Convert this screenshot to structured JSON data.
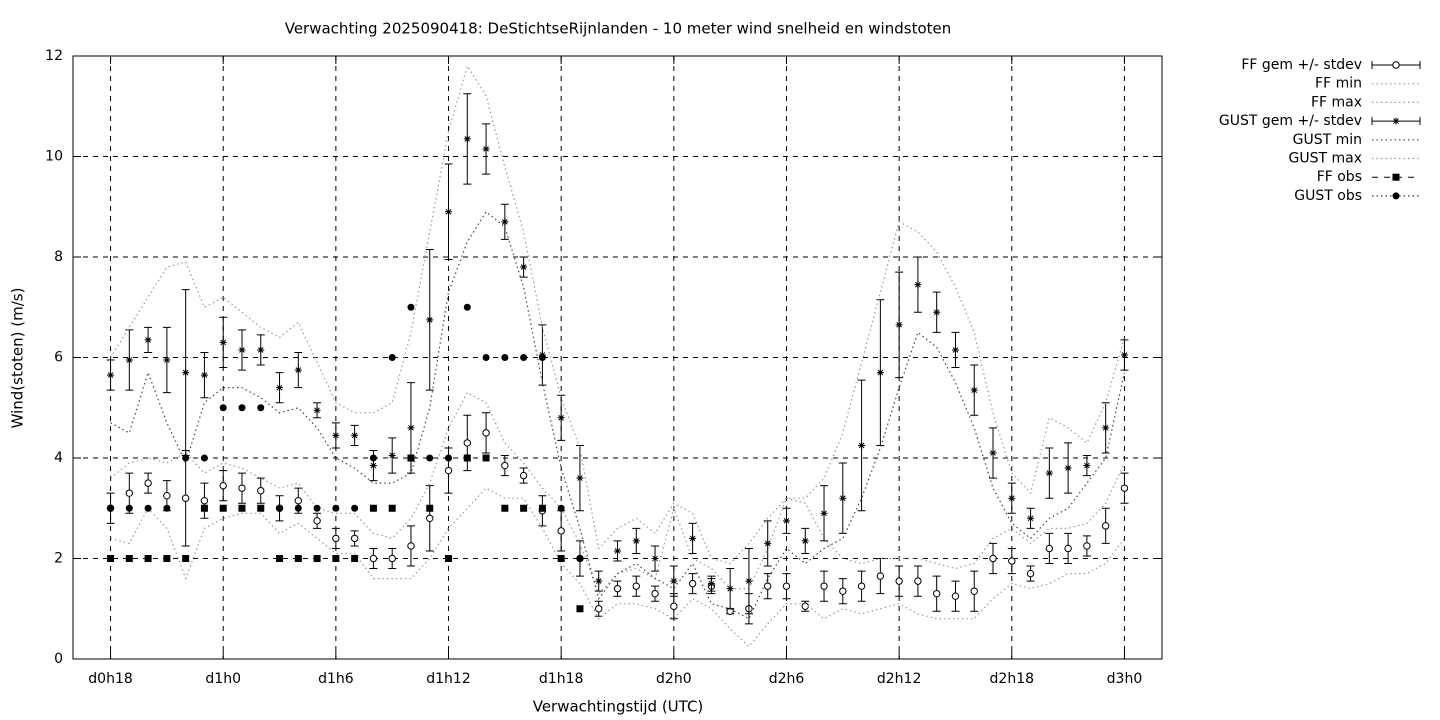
{
  "chart_data": {
    "type": "errorbar",
    "title": "Verwachting 2025090418: DeStichtseRijnlanden - 10 meter wind snelheid en windstoten",
    "xlabel": "Verwachtingstijd (UTC)",
    "ylabel": "Wind(stoten) (m/s)",
    "x": [
      18,
      19,
      20,
      21,
      22,
      23,
      24,
      25,
      26,
      27,
      28,
      29,
      30,
      31,
      32,
      33,
      34,
      35,
      36,
      37,
      38,
      39,
      40,
      41,
      42,
      43,
      44,
      45,
      46,
      47,
      48,
      49,
      50,
      51,
      52,
      53,
      54,
      55,
      56,
      57,
      58,
      59,
      60,
      61,
      62,
      63,
      64,
      65,
      66,
      67,
      68,
      69,
      70,
      71,
      72
    ],
    "xlim": [
      16,
      74
    ],
    "xticks": [
      {
        "value": 18,
        "label": "d0h18"
      },
      {
        "value": 24,
        "label": "d1h0"
      },
      {
        "value": 30,
        "label": "d1h6"
      },
      {
        "value": 36,
        "label": "d1h12"
      },
      {
        "value": 42,
        "label": "d1h18"
      },
      {
        "value": 48,
        "label": "d2h0"
      },
      {
        "value": 54,
        "label": "d2h6"
      },
      {
        "value": 60,
        "label": "d2h12"
      },
      {
        "value": 66,
        "label": "d2h18"
      },
      {
        "value": 72,
        "label": "d3h0"
      }
    ],
    "ylim": [
      0,
      12
    ],
    "yticks": [
      0,
      2,
      4,
      6,
      8,
      10,
      12
    ],
    "grid": true,
    "legend": "outside-right",
    "series": [
      {
        "name": "FF gem +/- stdev",
        "color": "#000000",
        "marker": "circle",
        "values": [
          3.0,
          3.3,
          3.5,
          3.25,
          3.2,
          3.15,
          3.45,
          3.4,
          3.35,
          3.0,
          3.15,
          2.75,
          2.4,
          2.4,
          2.0,
          2.0,
          2.25,
          2.8,
          3.75,
          4.3,
          4.5,
          3.85,
          3.65,
          2.95,
          2.55,
          2.0,
          1.0,
          1.4,
          1.45,
          1.3,
          1.05,
          1.5,
          1.45,
          0.95,
          1.0,
          1.45,
          1.45,
          1.05,
          1.45,
          1.35,
          1.45,
          1.65,
          1.55,
          1.55,
          1.3,
          1.25,
          1.35,
          2.0,
          1.95,
          1.7,
          2.2,
          2.2,
          2.25,
          2.65,
          3.4
        ],
        "errors": [
          0.3,
          0.4,
          0.2,
          0.3,
          0.95,
          0.35,
          0.3,
          0.3,
          0.25,
          0.25,
          0.25,
          0.15,
          0.2,
          0.15,
          0.2,
          0.2,
          0.4,
          0.65,
          0.45,
          0.55,
          0.4,
          0.2,
          0.15,
          0.3,
          0.4,
          0.35,
          0.15,
          0.15,
          0.2,
          0.15,
          0.25,
          0.2,
          0.15,
          0.05,
          0.3,
          0.25,
          0.25,
          0.1,
          0.3,
          0.25,
          0.3,
          0.35,
          0.3,
          0.3,
          0.35,
          0.3,
          0.4,
          0.3,
          0.25,
          0.15,
          0.3,
          0.3,
          0.2,
          0.35,
          0.3
        ]
      },
      {
        "name": "FF min",
        "color": "#999999",
        "line": "dotted",
        "values": [
          2.4,
          2.3,
          3.0,
          2.6,
          1.6,
          2.6,
          2.8,
          2.9,
          2.9,
          2.5,
          2.7,
          2.4,
          2.1,
          2.1,
          1.6,
          1.6,
          1.6,
          2.0,
          2.6,
          3.0,
          3.4,
          3.2,
          3.2,
          2.6,
          1.9,
          1.5,
          0.8,
          1.1,
          1.1,
          1.0,
          0.8,
          1.2,
          1.0,
          0.6,
          0.25,
          0.7,
          1.1,
          1.1,
          0.8,
          1.0,
          0.9,
          1.0,
          1.1,
          0.9,
          0.8,
          0.8,
          0.8,
          1.2,
          1.5,
          1.4,
          1.5,
          1.7,
          1.7,
          1.9,
          2.4
        ]
      },
      {
        "name": "FF max",
        "color": "#999999",
        "line": "dotted",
        "values": [
          3.6,
          3.9,
          4.0,
          3.9,
          4.1,
          3.7,
          3.9,
          3.8,
          3.6,
          3.4,
          3.5,
          3.0,
          2.9,
          2.9,
          2.5,
          2.4,
          2.8,
          3.5,
          4.6,
          5.3,
          5.1,
          4.3,
          3.9,
          3.4,
          3.0,
          2.3,
          1.3,
          1.7,
          1.8,
          1.6,
          3.0,
          2.0,
          1.8,
          1.4,
          1.4,
          2.2,
          3.2,
          3.1,
          2.4,
          2.0,
          1.9,
          2.0,
          2.0,
          2.0,
          1.9,
          1.8,
          1.9,
          2.4,
          2.6,
          2.3,
          2.6,
          2.6,
          2.7,
          3.1,
          3.9
        ]
      },
      {
        "name": "GUST gem +/- stdev",
        "color": "#000000",
        "marker": "star",
        "values": [
          5.65,
          5.95,
          6.35,
          5.95,
          5.7,
          5.65,
          6.3,
          6.15,
          6.15,
          5.4,
          5.75,
          4.95,
          4.45,
          4.45,
          3.85,
          4.05,
          4.6,
          6.75,
          8.9,
          10.35,
          10.15,
          8.7,
          7.8,
          6.05,
          4.8,
          3.6,
          1.55,
          2.15,
          2.35,
          2.0,
          1.55,
          2.4,
          1.5,
          1.4,
          1.55,
          2.3,
          2.75,
          2.35,
          2.9,
          3.2,
          4.25,
          5.7,
          6.65,
          7.45,
          6.9,
          6.15,
          5.35,
          4.1,
          3.2,
          2.8,
          3.7,
          3.8,
          3.85,
          4.6,
          6.05
        ],
        "errors": [
          0.3,
          0.6,
          0.25,
          0.65,
          1.65,
          0.45,
          0.5,
          0.4,
          0.3,
          0.3,
          0.35,
          0.15,
          0.25,
          0.2,
          0.3,
          0.35,
          0.9,
          1.4,
          0.95,
          0.9,
          0.5,
          0.35,
          0.2,
          0.6,
          0.45,
          0.65,
          0.2,
          0.2,
          0.25,
          0.25,
          0.3,
          0.3,
          0.15,
          0.4,
          0.65,
          0.45,
          0.25,
          0.25,
          0.55,
          0.7,
          1.3,
          1.45,
          1.05,
          0.55,
          0.4,
          0.35,
          0.5,
          0.5,
          0.3,
          0.2,
          0.5,
          0.5,
          0.2,
          0.5,
          0.3
        ]
      },
      {
        "name": "GUST min",
        "color": "#444444",
        "line": "dotted",
        "values": [
          4.7,
          4.5,
          5.7,
          4.7,
          3.9,
          5.1,
          5.4,
          5.4,
          5.2,
          4.9,
          5.0,
          4.6,
          4.0,
          3.8,
          3.5,
          3.5,
          3.7,
          5.0,
          7.3,
          8.3,
          8.9,
          8.6,
          7.4,
          5.5,
          3.8,
          2.6,
          1.2,
          1.7,
          1.9,
          1.6,
          1.4,
          1.9,
          1.1,
          1.0,
          0.8,
          1.6,
          2.2,
          1.9,
          2.2,
          2.4,
          3.2,
          4.2,
          5.4,
          6.5,
          6.2,
          5.5,
          4.6,
          3.4,
          2.7,
          2.4,
          2.8,
          3.0,
          3.5,
          4.0,
          5.7
        ]
      },
      {
        "name": "GUST max",
        "color": "#999999",
        "line": "dotted",
        "values": [
          6.0,
          6.6,
          7.2,
          7.8,
          7.9,
          7.0,
          7.2,
          6.9,
          6.6,
          6.4,
          6.7,
          5.9,
          5.1,
          4.9,
          4.9,
          5.1,
          6.5,
          8.5,
          10.5,
          11.8,
          11.2,
          9.8,
          8.5,
          6.6,
          5.2,
          4.2,
          2.2,
          2.6,
          2.8,
          2.5,
          3.1,
          2.9,
          2.0,
          1.9,
          2.3,
          2.8,
          3.2,
          3.2,
          3.6,
          4.5,
          5.9,
          7.3,
          8.7,
          8.5,
          8.1,
          7.4,
          6.5,
          4.9,
          3.7,
          3.3,
          4.8,
          4.6,
          4.3,
          5.1,
          6.4
        ]
      },
      {
        "name": "FF obs",
        "color": "#000000",
        "marker": "square",
        "values": [
          2,
          2,
          2,
          2,
          2,
          3,
          3,
          3,
          3,
          2,
          2,
          2,
          2,
          2,
          3,
          3,
          4,
          3,
          2,
          4,
          4,
          3,
          3,
          3,
          2,
          1,
          null,
          null,
          null,
          null,
          null,
          null,
          null,
          null,
          null,
          null,
          null,
          null,
          null,
          null,
          null,
          null,
          null,
          null,
          null,
          null,
          null,
          null,
          null,
          null,
          null,
          null,
          null,
          null,
          null
        ]
      },
      {
        "name": "GUST obs",
        "color": "#000000",
        "marker": "dot",
        "values": [
          3,
          3,
          3,
          3,
          4,
          4,
          5,
          5,
          5,
          3,
          3,
          3,
          3,
          3,
          4,
          6,
          7,
          4,
          4,
          7,
          6,
          6,
          6,
          6,
          3,
          2,
          null,
          null,
          null,
          null,
          null,
          null,
          null,
          null,
          null,
          null,
          null,
          null,
          null,
          null,
          null,
          null,
          null,
          null,
          null,
          null,
          null,
          null,
          null,
          null,
          null,
          null,
          null,
          null,
          null
        ]
      }
    ]
  }
}
